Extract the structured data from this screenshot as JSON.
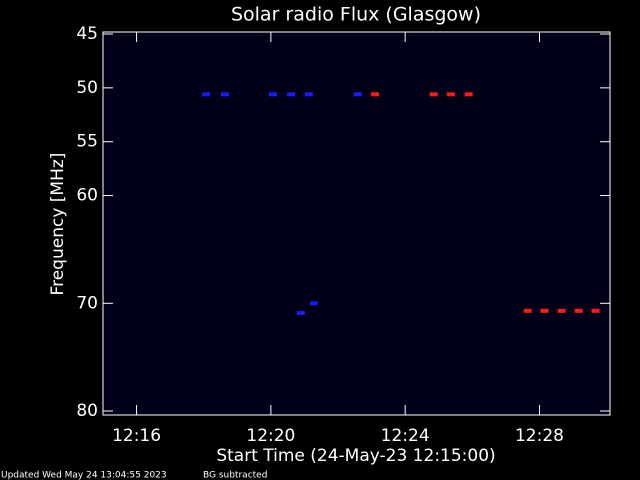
{
  "chart_data": {
    "type": "scatter",
    "title": "Solar radio Flux (Glasgow)",
    "x_label": "Start Time (24-May-23 12:15:00)",
    "y_label": "Frequency [MHz]",
    "footer": "Updated Wed May 24 13:04:55 2023",
    "note": "BG subtracted",
    "xlim": [
      735,
      750.1
    ],
    "xticks": [
      {
        "value": 736,
        "label": "12:16"
      },
      {
        "value": 740,
        "label": "12:20"
      },
      {
        "value": 744,
        "label": "12:24"
      },
      {
        "value": 748,
        "label": "12:28"
      }
    ],
    "ylim": [
      45,
      80
    ],
    "yticks": [
      45,
      50,
      55,
      60,
      70,
      80
    ],
    "series": [
      {
        "color": "#1a1aff",
        "x": [
          738.07,
          738.63,
          740.06,
          740.6,
          741.13,
          742.59,
          740.89,
          741.28
        ],
        "values": [
          50.6,
          50.6,
          50.6,
          50.6,
          50.6,
          50.6,
          70.9,
          70.0
        ]
      },
      {
        "color": "#ff1a1a",
        "x": [
          743.1,
          744.85,
          745.36,
          745.89,
          747.65,
          748.15,
          748.66,
          749.17,
          749.67
        ],
        "values": [
          50.6,
          50.6,
          50.6,
          50.6,
          70.7,
          70.7,
          70.7,
          70.7,
          70.7
        ]
      }
    ]
  }
}
